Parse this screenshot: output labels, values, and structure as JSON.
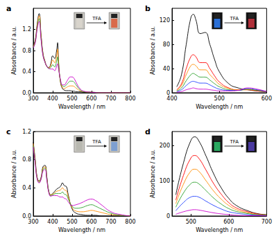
{
  "chart_data": [
    {
      "type": "line",
      "title": "a",
      "x_label": "Wavelength / nm",
      "y_label": "Absorbance / a.u.",
      "xlim": [
        300,
        800
      ],
      "xticks": [
        300,
        400,
        500,
        600,
        700,
        800
      ],
      "ylim": [
        0,
        1.6
      ],
      "yticks": [
        {
          "value": 0,
          "label": "0.0"
        },
        0.4,
        0.8,
        1.2
      ],
      "grid": false,
      "annotations": [
        "TFA"
      ],
      "x": [
        300,
        310,
        320,
        330,
        340,
        350,
        360,
        370,
        380,
        390,
        400,
        410,
        420,
        425,
        430,
        440,
        450,
        460,
        470,
        480,
        490,
        500,
        510,
        520,
        540,
        560,
        600,
        650,
        700,
        750,
        800
      ],
      "series": [
        {
          "color": "#000000",
          "values": [
            0.9,
            1.0,
            1.3,
            1.5,
            1.1,
            0.75,
            0.6,
            0.5,
            0.48,
            0.55,
            0.7,
            0.65,
            0.8,
            0.95,
            0.6,
            0.2,
            0.08,
            0.05,
            0.04,
            0.04,
            0.04,
            0.03,
            0.03,
            0.02,
            0.02,
            0.01,
            0.01,
            0,
            0,
            0,
            0
          ]
        },
        {
          "color": "#ff8c00",
          "values": [
            0.88,
            0.98,
            1.27,
            1.46,
            1.07,
            0.73,
            0.59,
            0.5,
            0.47,
            0.52,
            0.62,
            0.57,
            0.71,
            0.83,
            0.55,
            0.21,
            0.1,
            0.08,
            0.1,
            0.12,
            0.13,
            0.13,
            0.12,
            0.09,
            0.04,
            0.02,
            0.01,
            0,
            0,
            0,
            0
          ]
        },
        {
          "color": "#2ca02c",
          "values": [
            0.86,
            0.96,
            1.23,
            1.4,
            1.03,
            0.71,
            0.58,
            0.5,
            0.46,
            0.48,
            0.53,
            0.49,
            0.6,
            0.68,
            0.5,
            0.23,
            0.13,
            0.12,
            0.15,
            0.19,
            0.22,
            0.22,
            0.2,
            0.15,
            0.06,
            0.02,
            0.01,
            0,
            0,
            0,
            0
          ]
        },
        {
          "color": "#cc00cc",
          "values": [
            0.85,
            0.95,
            1.2,
            1.35,
            1.0,
            0.7,
            0.58,
            0.5,
            0.46,
            0.45,
            0.45,
            0.42,
            0.5,
            0.55,
            0.45,
            0.25,
            0.15,
            0.15,
            0.2,
            0.26,
            0.3,
            0.3,
            0.27,
            0.2,
            0.08,
            0.03,
            0.01,
            0,
            0,
            0,
            0
          ]
        }
      ]
    },
    {
      "type": "line",
      "title": "b",
      "x_label": "Wavelength / nm",
      "y_label": "Absorbance / a.u.",
      "xlim": [
        400,
        600
      ],
      "xticks": [
        400,
        500,
        600
      ],
      "ylim": [
        0,
        140
      ],
      "yticks": [
        0,
        40,
        80,
        120
      ],
      "grid": false,
      "annotations": [
        "TFA"
      ],
      "x": [
        410,
        420,
        430,
        440,
        445,
        450,
        460,
        470,
        480,
        490,
        500,
        520,
        540,
        560,
        580,
        600
      ],
      "series": [
        {
          "color": "#000000",
          "values": [
            10,
            30,
            80,
            125,
            130,
            122,
            98,
            100,
            80,
            55,
            35,
            15,
            8,
            5,
            3,
            2
          ]
        },
        {
          "color": "#ff0000",
          "values": [
            5,
            15,
            40,
            60,
            63,
            60,
            50,
            50,
            40,
            28,
            18,
            8,
            5,
            5,
            3,
            2
          ]
        },
        {
          "color": "#ff8c00",
          "values": [
            4,
            12,
            30,
            45,
            47,
            45,
            38,
            38,
            30,
            22,
            14,
            7,
            5,
            5,
            4,
            2
          ]
        },
        {
          "color": "#2ca02c",
          "values": [
            3,
            8,
            20,
            30,
            32,
            30,
            26,
            26,
            21,
            15,
            10,
            5,
            4,
            6,
            4,
            2
          ]
        },
        {
          "color": "#1f3fff",
          "values": [
            2,
            5,
            12,
            18,
            19,
            18,
            16,
            16,
            13,
            9,
            6,
            4,
            4,
            7,
            5,
            2
          ]
        },
        {
          "color": "#cc00cc",
          "values": [
            1,
            2,
            5,
            7,
            8,
            7,
            6,
            6,
            5,
            4,
            3,
            3,
            4,
            8,
            6,
            2
          ]
        }
      ]
    },
    {
      "type": "line",
      "title": "c",
      "x_label": "Wavelength / nm",
      "y_label": "Absorbance / a.u.",
      "xlim": [
        300,
        800
      ],
      "xticks": [
        300,
        400,
        500,
        600,
        700,
        800
      ],
      "ylim": [
        0,
        1.2
      ],
      "yticks": [
        {
          "value": 0,
          "label": "0.0"
        },
        0.4,
        0.8,
        1.2
      ],
      "grid": false,
      "annotations": [
        "TFA"
      ],
      "x": [
        300,
        310,
        320,
        330,
        340,
        350,
        360,
        370,
        380,
        390,
        400,
        420,
        440,
        450,
        460,
        470,
        480,
        500,
        520,
        550,
        580,
        600,
        620,
        650,
        700,
        750,
        800
      ],
      "series": [
        {
          "color": "#000000",
          "values": [
            1.05,
            0.8,
            0.55,
            0.5,
            0.55,
            0.7,
            0.72,
            0.55,
            0.35,
            0.3,
            0.32,
            0.38,
            0.42,
            0.47,
            0.43,
            0.42,
            0.3,
            0.1,
            0.04,
            0.02,
            0.01,
            0.01,
            0.01,
            0,
            0,
            0,
            0
          ]
        },
        {
          "color": "#ff8c00",
          "values": [
            1.03,
            0.78,
            0.54,
            0.49,
            0.54,
            0.68,
            0.7,
            0.53,
            0.34,
            0.3,
            0.31,
            0.35,
            0.37,
            0.4,
            0.37,
            0.36,
            0.27,
            0.12,
            0.07,
            0.06,
            0.07,
            0.08,
            0.07,
            0.05,
            0.02,
            0.01,
            0
          ]
        },
        {
          "color": "#2ca02c",
          "values": [
            1.0,
            0.76,
            0.53,
            0.48,
            0.53,
            0.66,
            0.68,
            0.52,
            0.34,
            0.29,
            0.3,
            0.32,
            0.32,
            0.34,
            0.31,
            0.3,
            0.24,
            0.14,
            0.11,
            0.12,
            0.15,
            0.16,
            0.14,
            0.1,
            0.04,
            0.01,
            0
          ]
        },
        {
          "color": "#cc00cc",
          "values": [
            0.98,
            0.74,
            0.52,
            0.47,
            0.52,
            0.64,
            0.66,
            0.5,
            0.33,
            0.28,
            0.29,
            0.29,
            0.27,
            0.27,
            0.25,
            0.24,
            0.2,
            0.15,
            0.16,
            0.19,
            0.23,
            0.24,
            0.22,
            0.16,
            0.06,
            0.02,
            0
          ]
        }
      ]
    },
    {
      "type": "line",
      "title": "d",
      "x_label": "Wavelength / nm",
      "y_label": "Absorbance / a.u.",
      "xlim": [
        450,
        700
      ],
      "xticks": [
        500,
        600,
        700
      ],
      "ylim": [
        0,
        240
      ],
      "yticks": [
        0,
        100,
        200
      ],
      "grid": false,
      "annotations": [
        "TFA"
      ],
      "x": [
        460,
        480,
        500,
        510,
        520,
        540,
        560,
        580,
        600,
        620,
        650,
        680,
        700
      ],
      "series": [
        {
          "color": "#000000",
          "values": [
            60,
            150,
            215,
            225,
            215,
            170,
            120,
            80,
            50,
            30,
            15,
            6,
            4
          ]
        },
        {
          "color": "#ff0000",
          "values": [
            45,
            115,
            165,
            172,
            165,
            130,
            92,
            62,
            38,
            23,
            12,
            5,
            3
          ]
        },
        {
          "color": "#ff8c00",
          "values": [
            35,
            90,
            128,
            133,
            128,
            100,
            71,
            48,
            30,
            18,
            9,
            4,
            3
          ]
        },
        {
          "color": "#2ca02c",
          "values": [
            25,
            65,
            92,
            96,
            92,
            72,
            51,
            34,
            21,
            13,
            7,
            3,
            2
          ]
        },
        {
          "color": "#1f3fff",
          "values": [
            15,
            38,
            54,
            56,
            54,
            42,
            30,
            20,
            12,
            8,
            4,
            2,
            1
          ]
        },
        {
          "color": "#cc00cc",
          "values": [
            5,
            12,
            17,
            18,
            17,
            13,
            9,
            6,
            4,
            2,
            1,
            1,
            0
          ]
        }
      ]
    }
  ]
}
